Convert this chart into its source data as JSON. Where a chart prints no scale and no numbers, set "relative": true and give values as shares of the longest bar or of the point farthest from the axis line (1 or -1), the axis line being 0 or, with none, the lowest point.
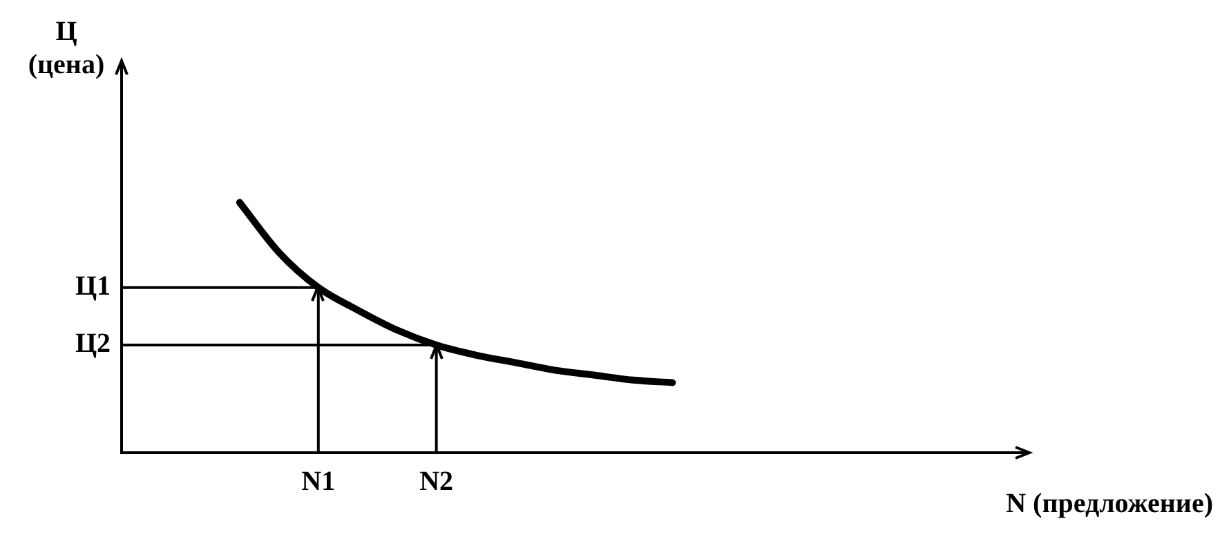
{
  "chart_data": {
    "type": "line",
    "relative": true,
    "xlabel": "N (предложение)",
    "ylabel": "Ц (цена)",
    "categories": [
      null,
      null,
      null,
      null,
      null,
      "N1",
      null,
      null,
      "N2",
      null,
      null,
      null,
      null,
      null,
      null,
      null,
      null,
      null,
      null,
      null,
      null,
      null,
      null,
      null
    ],
    "series": [
      {
        "color": "#000000",
        "values": [
          null,
          null,
          null,
          1,
          0.8,
          0.66,
          0.57,
          0.49,
          0.43,
          0.39,
          0.36,
          0.33,
          0.31,
          0.29,
          0.28,
          null,
          null,
          null,
          null,
          null,
          null,
          null,
          null,
          null
        ]
      }
    ],
    "ref_lines": [
      {
        "axis": "y",
        "value": 0.66,
        "label": "Ц1"
      },
      {
        "axis": "y",
        "value": 0.43,
        "label": "Ц2"
      },
      {
        "axis": "x",
        "value": "N1"
      },
      {
        "axis": "x",
        "value": "N2"
      }
    ],
    "grid": false,
    "legend": false,
    "marker": "none",
    "line_style": "solid"
  }
}
